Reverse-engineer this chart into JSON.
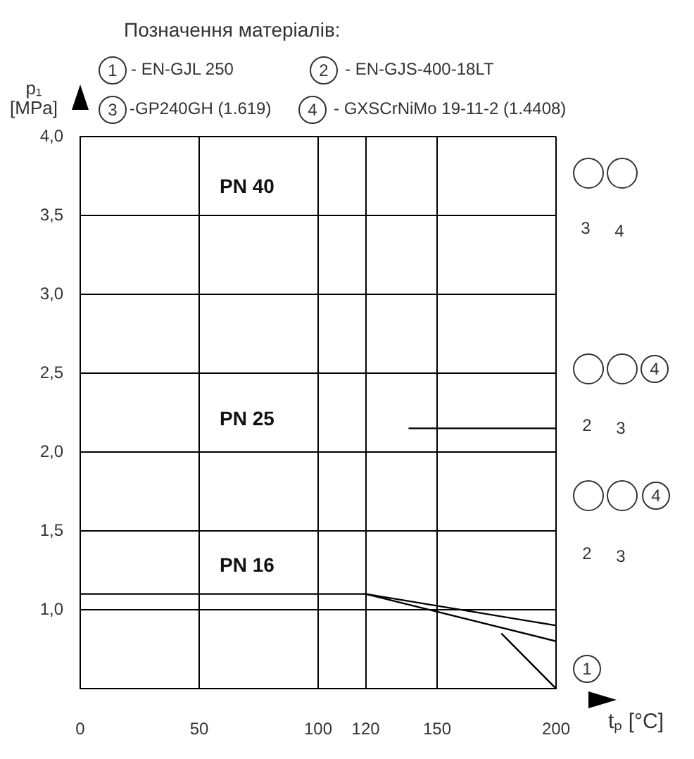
{
  "chart_data": {
    "type": "line",
    "title": "Позначення матеріалів:",
    "xlabel": "tₚ [°C]",
    "ylabel": "p₁ [MPa]",
    "xlim": [
      0,
      200
    ],
    "xticks": [
      0,
      50,
      100,
      120,
      150,
      200
    ],
    "ylim": [
      0.5,
      4.0
    ],
    "yticks": [
      {
        "value": 1.0,
        "label": "1,0"
      },
      {
        "value": 1.5,
        "label": "1,5"
      },
      {
        "value": 2.0,
        "label": "2,0"
      },
      {
        "value": 2.5,
        "label": "2,5"
      },
      {
        "value": 3.0,
        "label": "3,0"
      },
      {
        "value": 3.5,
        "label": "3,5"
      },
      {
        "value": 4.0,
        "label": "4,0"
      }
    ],
    "grid": true,
    "legend": false,
    "series": [
      {
        "color": "#000000",
        "x": [
          0,
          120,
          200
        ],
        "values": [
          1.1,
          1.1,
          0.9
        ]
      },
      {
        "color": "#000000",
        "x": [
          120,
          200
        ],
        "values": [
          1.1,
          0.8
        ]
      },
      {
        "color": "#000000",
        "x": [
          177,
          200
        ],
        "values": [
          0.85,
          0.5
        ]
      },
      {
        "color": "#000000",
        "x": [
          138,
          200
        ],
        "values": [
          2.15,
          2.15
        ]
      }
    ],
    "annotations": [
      "1",
      "- EN-GJL 250",
      "2",
      "- EN-GJS-400-18LT",
      "3",
      "-GP240GH (1.619)",
      "4",
      "- GXSCrNiMo 19-11-2 (1.4408)",
      "PN 40",
      "PN 25",
      "PN 16",
      "3",
      "4",
      "4",
      "2",
      "3",
      "4",
      "2",
      "3",
      "1"
    ]
  }
}
